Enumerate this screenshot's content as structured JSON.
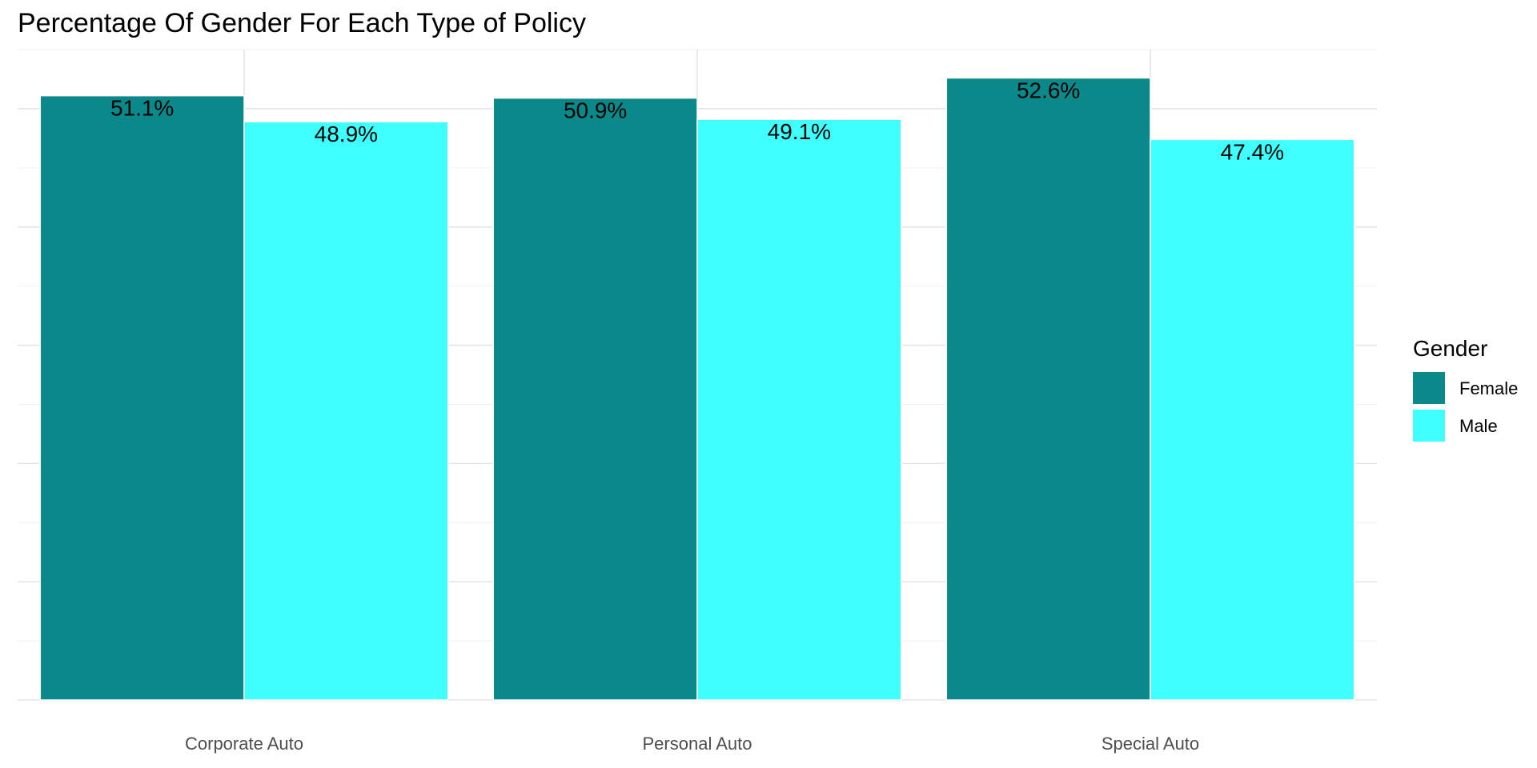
{
  "chart_data": {
    "type": "bar",
    "title": "Percentage Of Gender For Each Type of Policy",
    "xlabel": "",
    "ylabel": "",
    "categories": [
      "Corporate Auto",
      "Personal Auto",
      "Special Auto"
    ],
    "series": [
      {
        "name": "Female",
        "color": "#0b8889",
        "values": [
          51.1,
          50.9,
          52.6
        ],
        "labels": [
          "51.1%",
          "50.9%",
          "52.6%"
        ]
      },
      {
        "name": "Male",
        "color": "#40ffff",
        "values": [
          48.9,
          49.1,
          47.4
        ],
        "labels": [
          "48.9%",
          "49.1%",
          "47.4%"
        ]
      }
    ],
    "ylim": [
      0,
      55
    ],
    "y_axis_tick_labels_visible": false,
    "grid": true,
    "legend": {
      "title": "Gender",
      "position": "right"
    }
  }
}
